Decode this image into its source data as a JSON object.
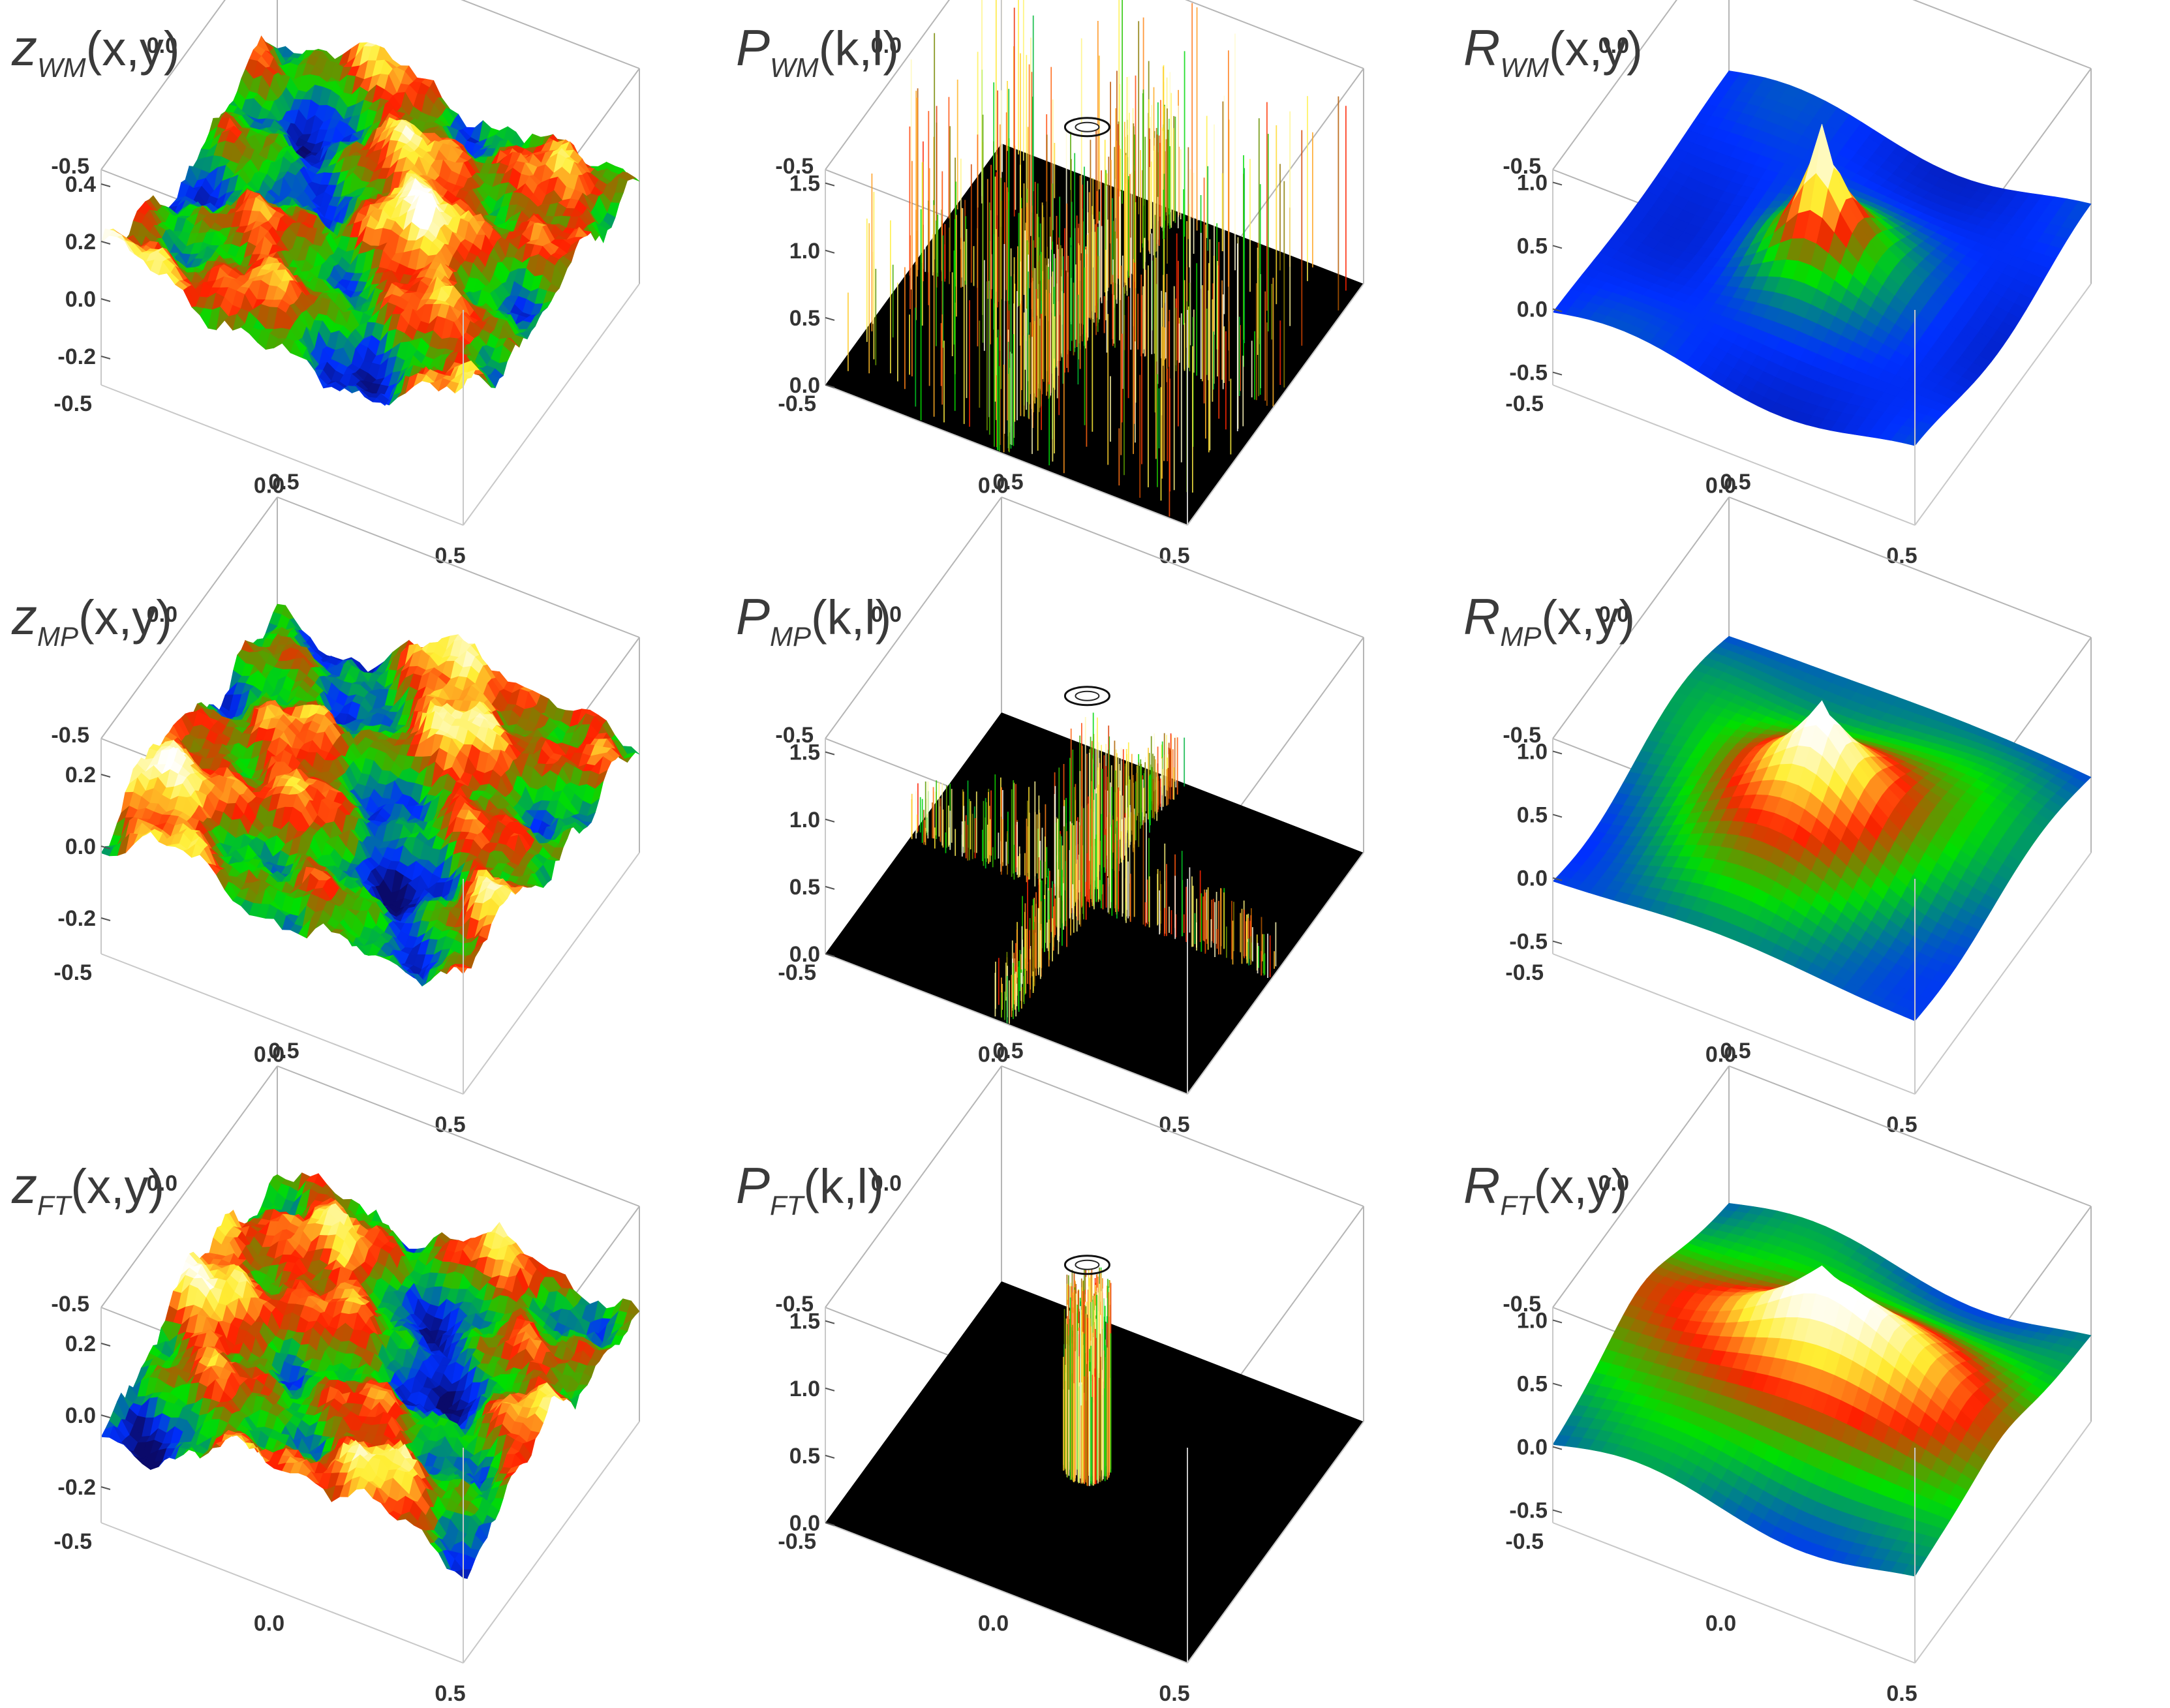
{
  "figure": {
    "rows": [
      "WM",
      "MP",
      "FT"
    ],
    "colormap": [
      "#0a0a6a",
      "#0030ff",
      "#00e000",
      "#ff2000",
      "#ffee33",
      "#ffffff"
    ]
  },
  "chart_data": [
    {
      "type": "surface",
      "quantity": "z",
      "method": "WM",
      "title_main": "z",
      "title_sub": "WM",
      "title_args": "(x,y)",
      "x_ticks": [
        "0.0",
        "0.5"
      ],
      "y_ticks": [
        "0.5",
        "0.0",
        "-0.5"
      ],
      "z_ticks": [
        "0.4",
        "0.2",
        "0.0",
        "-0.2"
      ],
      "zlim": [
        -0.3,
        0.45
      ]
    },
    {
      "type": "surface",
      "quantity": "P",
      "method": "WM",
      "title_main": "P",
      "title_sub": "WM",
      "title_args": "(k,l)",
      "x_ticks": [
        "0.0",
        "0.5"
      ],
      "y_ticks": [
        "0.5",
        "0.0",
        "-0.5"
      ],
      "z_ticks": [
        "1.5",
        "1.0",
        "0.5",
        "0.0"
      ],
      "zlim": [
        0,
        1.6
      ]
    },
    {
      "type": "surface",
      "quantity": "R",
      "method": "WM",
      "title_main": "R",
      "title_sub": "WM",
      "title_args": "(x,y)",
      "x_ticks": [
        "0.0",
        "0.5"
      ],
      "y_ticks": [
        "0.5",
        "0.0",
        "-0.5"
      ],
      "z_ticks": [
        "1.0",
        "0.5",
        "0.0",
        "-0.5"
      ],
      "zlim": [
        -0.6,
        1.1
      ]
    },
    {
      "type": "surface",
      "quantity": "z",
      "method": "MP",
      "title_main": "z",
      "title_sub": "MP",
      "title_args": "(x,y)",
      "x_ticks": [
        "0.0",
        "0.5"
      ],
      "y_ticks": [
        "0.5",
        "0.0",
        "-0.5"
      ],
      "z_ticks": [
        "0.2",
        "0.0",
        "-0.2"
      ],
      "zlim": [
        -0.3,
        0.3
      ]
    },
    {
      "type": "surface",
      "quantity": "P",
      "method": "MP",
      "title_main": "P",
      "title_sub": "MP",
      "title_args": "(k,l)",
      "x_ticks": [
        "0.0",
        "0.5"
      ],
      "y_ticks": [
        "0.5",
        "0.0",
        "-0.5"
      ],
      "z_ticks": [
        "1.5",
        "1.0",
        "0.5",
        "0.0"
      ],
      "zlim": [
        0,
        1.6
      ]
    },
    {
      "type": "surface",
      "quantity": "R",
      "method": "MP",
      "title_main": "R",
      "title_sub": "MP",
      "title_args": "(x,y)",
      "x_ticks": [
        "0.0",
        "0.5"
      ],
      "y_ticks": [
        "0.5",
        "0.0",
        "-0.5"
      ],
      "z_ticks": [
        "1.0",
        "0.5",
        "0.0",
        "-0.5"
      ],
      "zlim": [
        -0.6,
        1.1
      ]
    },
    {
      "type": "surface",
      "quantity": "z",
      "method": "FT",
      "title_main": "z",
      "title_sub": "FT",
      "title_args": "(x,y)",
      "x_ticks": [
        "0.0",
        "0.5"
      ],
      "y_ticks": [
        "0.5",
        "0.0",
        "-0.5"
      ],
      "z_ticks": [
        "0.2",
        "0.0",
        "-0.2"
      ],
      "zlim": [
        -0.3,
        0.3
      ]
    },
    {
      "type": "surface",
      "quantity": "P",
      "method": "FT",
      "title_main": "P",
      "title_sub": "FT",
      "title_args": "(k,l)",
      "x_ticks": [
        "0.0",
        "0.5"
      ],
      "y_ticks": [
        "0.5",
        "0.0",
        "-0.5"
      ],
      "z_ticks": [
        "1.5",
        "1.0",
        "0.5",
        "0.0"
      ],
      "zlim": [
        0,
        1.6
      ]
    },
    {
      "type": "surface",
      "quantity": "R",
      "method": "FT",
      "title_main": "R",
      "title_sub": "FT",
      "title_args": "(x,y)",
      "x_ticks": [
        "0.0",
        "0.5"
      ],
      "y_ticks": [
        "0.5",
        "0.0",
        "-0.5"
      ],
      "z_ticks": [
        "1.0",
        "0.5",
        "0.0",
        "-0.5"
      ],
      "zlim": [
        -0.6,
        1.1
      ]
    }
  ]
}
